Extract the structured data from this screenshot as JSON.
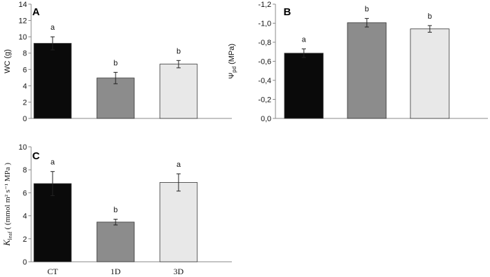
{
  "chart_data": [
    {
      "panel": "A",
      "type": "bar",
      "categories": [
        "CT",
        "1D",
        "3D"
      ],
      "values": [
        9.2,
        4.95,
        6.65
      ],
      "errors": [
        0.8,
        0.7,
        0.45
      ],
      "letters": [
        "a",
        "b",
        "b"
      ],
      "ylabel": "WC (g)",
      "ylim": [
        0,
        14
      ],
      "yticks": [
        0,
        2,
        4,
        6,
        8,
        10,
        12,
        14
      ],
      "yticklabels": [
        "0",
        "2",
        "4",
        "6",
        "8",
        "10",
        "12",
        "14"
      ],
      "inverted": false,
      "grid": false
    },
    {
      "panel": "B",
      "type": "bar",
      "categories": [
        "CT",
        "1D",
        "3D"
      ],
      "values": [
        -0.685,
        -1.005,
        -0.94
      ],
      "errors": [
        0.045,
        0.045,
        0.035
      ],
      "letters": [
        "a",
        "b",
        "b"
      ],
      "ylabel": "Ψ",
      "ylabel_sub": "pd",
      "ylabel_unit": "(MPa)",
      "ylim": [
        0,
        -1.2
      ],
      "yticks": [
        0,
        -0.2,
        -0.4,
        -0.6,
        -0.8,
        -1.0,
        -1.2
      ],
      "yticklabels": [
        "0,0",
        "-0,2",
        "-0,4",
        "-0,6",
        "-0,8",
        "-1,0",
        "-1,2"
      ],
      "inverted": true,
      "grid": false
    },
    {
      "panel": "C",
      "type": "bar",
      "categories": [
        "CT",
        "1D",
        "3D"
      ],
      "xticklabels": [
        "CT",
        "1D",
        "3D"
      ],
      "values": [
        6.8,
        3.45,
        6.9
      ],
      "errors": [
        1.05,
        0.25,
        0.75
      ],
      "letters": [
        "a",
        "b",
        "a"
      ],
      "ylabel": "K",
      "ylabel_sub": "leaf",
      "ylabel_unit": "( (mmol m² s⁻¹ MPa )",
      "ylim": [
        0,
        10
      ],
      "yticks": [
        0,
        2,
        4,
        6,
        8,
        10
      ],
      "yticklabels": [
        "0",
        "2",
        "4",
        "6",
        "8",
        "10"
      ],
      "inverted": false,
      "grid": false
    }
  ],
  "colors": {
    "bars": [
      "#0a0a0a",
      "#8c8c8c",
      "#e8e8e8"
    ],
    "axis": "#888888",
    "text": "#111111"
  }
}
